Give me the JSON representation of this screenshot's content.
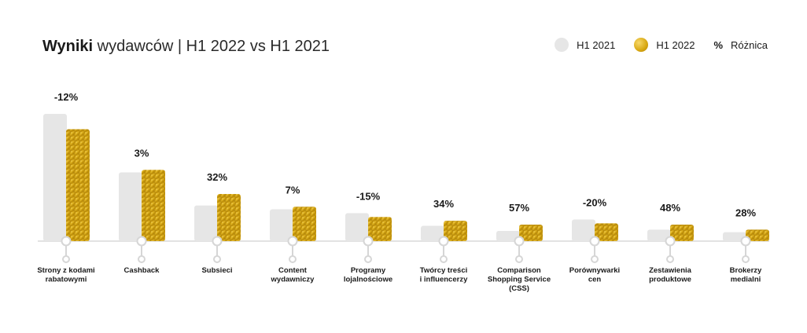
{
  "title": {
    "bold": "Wyniki",
    "rest": "wydawców | H1 2022 vs H1 2021"
  },
  "legend": {
    "h2021": "H1 2021",
    "h2022": "H1 2022",
    "pct_symbol": "%",
    "diff": "Różnica"
  },
  "colors": {
    "h2021": "#e6e6e6",
    "gold_light": "#f1c93a",
    "gold_dark": "#b98a07",
    "axis": "#e2e2e2"
  },
  "chart_data": {
    "type": "bar",
    "title": "Wyniki wydawców | H1 2022 vs H1 2021",
    "categories": [
      [
        "Strony z kodami",
        "rabatowymi"
      ],
      [
        "Cashback"
      ],
      [
        "Subsieci"
      ],
      [
        "Content",
        "wydawniczy"
      ],
      [
        "Programy",
        "lojalnościowe"
      ],
      [
        "Twórcy treści",
        "i influencerzy"
      ],
      [
        "Comparison",
        "Shopping Service",
        "(CSS)"
      ],
      [
        "Porównywarki",
        "cen"
      ],
      [
        "Zestawienia",
        "produktowe"
      ],
      [
        "Brokerzy",
        "medialni"
      ]
    ],
    "series": [
      {
        "name": "H1 2021",
        "values": [
          100,
          54,
          28,
          25,
          22,
          12,
          8,
          17,
          9,
          7
        ]
      },
      {
        "name": "H1 2022",
        "values": [
          88,
          56,
          37,
          27,
          19,
          16,
          13,
          14,
          13,
          9
        ]
      }
    ],
    "differences": [
      "-12%",
      "3%",
      "32%",
      "7%",
      "-15%",
      "34%",
      "57%",
      "-20%",
      "48%",
      "28%"
    ],
    "ylim": [
      0,
      100
    ],
    "legend_position": "top-right",
    "grid": false
  }
}
